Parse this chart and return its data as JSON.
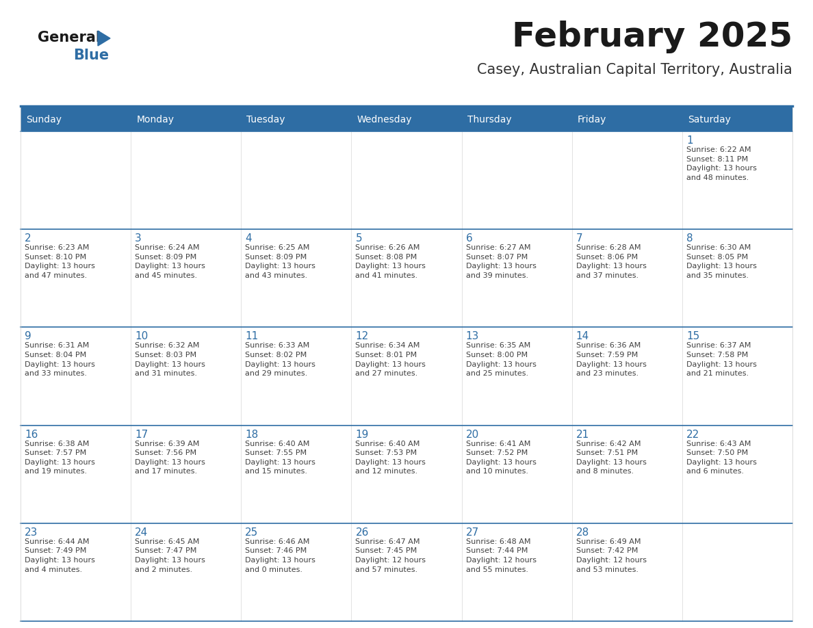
{
  "title": "February 2025",
  "subtitle": "Casey, Australian Capital Territory, Australia",
  "header_bg": "#2E6DA4",
  "header_text_color": "#FFFFFF",
  "cell_bg": "#FFFFFF",
  "day_number_color": "#2E6DA4",
  "info_text_color": "#404040",
  "border_color": "#2E6DA4",
  "grid_line_color": "#CCCCCC",
  "days_of_week": [
    "Sunday",
    "Monday",
    "Tuesday",
    "Wednesday",
    "Thursday",
    "Friday",
    "Saturday"
  ],
  "weeks": [
    [
      {
        "day": null,
        "info": null
      },
      {
        "day": null,
        "info": null
      },
      {
        "day": null,
        "info": null
      },
      {
        "day": null,
        "info": null
      },
      {
        "day": null,
        "info": null
      },
      {
        "day": null,
        "info": null
      },
      {
        "day": 1,
        "info": "Sunrise: 6:22 AM\nSunset: 8:11 PM\nDaylight: 13 hours\nand 48 minutes."
      }
    ],
    [
      {
        "day": 2,
        "info": "Sunrise: 6:23 AM\nSunset: 8:10 PM\nDaylight: 13 hours\nand 47 minutes."
      },
      {
        "day": 3,
        "info": "Sunrise: 6:24 AM\nSunset: 8:09 PM\nDaylight: 13 hours\nand 45 minutes."
      },
      {
        "day": 4,
        "info": "Sunrise: 6:25 AM\nSunset: 8:09 PM\nDaylight: 13 hours\nand 43 minutes."
      },
      {
        "day": 5,
        "info": "Sunrise: 6:26 AM\nSunset: 8:08 PM\nDaylight: 13 hours\nand 41 minutes."
      },
      {
        "day": 6,
        "info": "Sunrise: 6:27 AM\nSunset: 8:07 PM\nDaylight: 13 hours\nand 39 minutes."
      },
      {
        "day": 7,
        "info": "Sunrise: 6:28 AM\nSunset: 8:06 PM\nDaylight: 13 hours\nand 37 minutes."
      },
      {
        "day": 8,
        "info": "Sunrise: 6:30 AM\nSunset: 8:05 PM\nDaylight: 13 hours\nand 35 minutes."
      }
    ],
    [
      {
        "day": 9,
        "info": "Sunrise: 6:31 AM\nSunset: 8:04 PM\nDaylight: 13 hours\nand 33 minutes."
      },
      {
        "day": 10,
        "info": "Sunrise: 6:32 AM\nSunset: 8:03 PM\nDaylight: 13 hours\nand 31 minutes."
      },
      {
        "day": 11,
        "info": "Sunrise: 6:33 AM\nSunset: 8:02 PM\nDaylight: 13 hours\nand 29 minutes."
      },
      {
        "day": 12,
        "info": "Sunrise: 6:34 AM\nSunset: 8:01 PM\nDaylight: 13 hours\nand 27 minutes."
      },
      {
        "day": 13,
        "info": "Sunrise: 6:35 AM\nSunset: 8:00 PM\nDaylight: 13 hours\nand 25 minutes."
      },
      {
        "day": 14,
        "info": "Sunrise: 6:36 AM\nSunset: 7:59 PM\nDaylight: 13 hours\nand 23 minutes."
      },
      {
        "day": 15,
        "info": "Sunrise: 6:37 AM\nSunset: 7:58 PM\nDaylight: 13 hours\nand 21 minutes."
      }
    ],
    [
      {
        "day": 16,
        "info": "Sunrise: 6:38 AM\nSunset: 7:57 PM\nDaylight: 13 hours\nand 19 minutes."
      },
      {
        "day": 17,
        "info": "Sunrise: 6:39 AM\nSunset: 7:56 PM\nDaylight: 13 hours\nand 17 minutes."
      },
      {
        "day": 18,
        "info": "Sunrise: 6:40 AM\nSunset: 7:55 PM\nDaylight: 13 hours\nand 15 minutes."
      },
      {
        "day": 19,
        "info": "Sunrise: 6:40 AM\nSunset: 7:53 PM\nDaylight: 13 hours\nand 12 minutes."
      },
      {
        "day": 20,
        "info": "Sunrise: 6:41 AM\nSunset: 7:52 PM\nDaylight: 13 hours\nand 10 minutes."
      },
      {
        "day": 21,
        "info": "Sunrise: 6:42 AM\nSunset: 7:51 PM\nDaylight: 13 hours\nand 8 minutes."
      },
      {
        "day": 22,
        "info": "Sunrise: 6:43 AM\nSunset: 7:50 PM\nDaylight: 13 hours\nand 6 minutes."
      }
    ],
    [
      {
        "day": 23,
        "info": "Sunrise: 6:44 AM\nSunset: 7:49 PM\nDaylight: 13 hours\nand 4 minutes."
      },
      {
        "day": 24,
        "info": "Sunrise: 6:45 AM\nSunset: 7:47 PM\nDaylight: 13 hours\nand 2 minutes."
      },
      {
        "day": 25,
        "info": "Sunrise: 6:46 AM\nSunset: 7:46 PM\nDaylight: 13 hours\nand 0 minutes."
      },
      {
        "day": 26,
        "info": "Sunrise: 6:47 AM\nSunset: 7:45 PM\nDaylight: 12 hours\nand 57 minutes."
      },
      {
        "day": 27,
        "info": "Sunrise: 6:48 AM\nSunset: 7:44 PM\nDaylight: 12 hours\nand 55 minutes."
      },
      {
        "day": 28,
        "info": "Sunrise: 6:49 AM\nSunset: 7:42 PM\nDaylight: 12 hours\nand 53 minutes."
      },
      {
        "day": null,
        "info": null
      }
    ]
  ],
  "logo_color1": "#1a1a1a",
  "logo_color2": "#2E6DA4",
  "logo_triangle_color": "#2E6DA4",
  "title_fontsize": 36,
  "subtitle_fontsize": 15,
  "header_fontsize": 10,
  "day_num_fontsize": 11,
  "info_fontsize": 8
}
